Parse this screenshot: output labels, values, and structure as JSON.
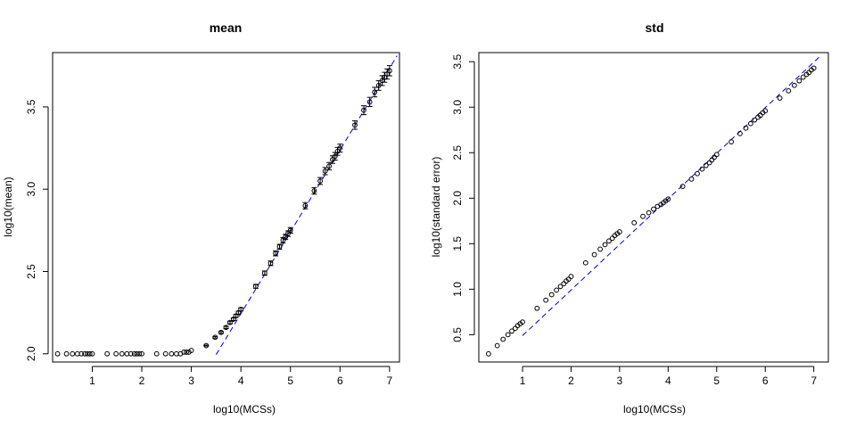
{
  "chart_data": [
    {
      "type": "scatter",
      "title": "mean",
      "xlabel": "log10(MCSs)",
      "ylabel": "log10(mean)",
      "xlim": [
        0.2,
        7.2
      ],
      "ylim": [
        1.95,
        3.83
      ],
      "xticks": [
        1,
        2,
        3,
        4,
        5,
        6,
        7
      ],
      "yticks": [
        2.0,
        2.5,
        3.0,
        3.5
      ],
      "ytick_labels": [
        "2.0",
        "2.5",
        "3.0",
        "3.5"
      ],
      "fit_line": {
        "x": [
          3.5,
          7.15
        ],
        "y": [
          1.995,
          3.81
        ],
        "color": "#0000cc",
        "style": "dashed"
      },
      "series": [
        {
          "x": [
            0.3,
            0.48,
            0.6,
            0.7,
            0.78,
            0.85,
            0.9,
            0.95,
            1.0,
            1.3,
            1.48,
            1.6,
            1.7,
            1.78,
            1.85,
            1.9,
            1.95,
            2.0,
            2.3,
            2.48,
            2.6,
            2.7,
            2.78,
            2.85,
            2.9,
            2.95,
            3.0,
            3.3,
            3.48,
            3.6,
            3.7,
            3.78,
            3.85,
            3.9,
            3.95,
            4.0,
            4.3,
            4.48,
            4.6,
            4.7,
            4.78,
            4.85,
            4.9,
            4.95,
            5.0,
            5.3,
            5.48,
            5.6,
            5.7,
            5.78,
            5.85,
            5.9,
            5.95,
            6.0,
            6.3,
            6.48,
            6.6,
            6.7,
            6.78,
            6.85,
            6.9,
            6.95,
            7.0
          ],
          "y": [
            2.0,
            2.0,
            2.0,
            2.0,
            2.0,
            2.0,
            2.0,
            2.0,
            2.0,
            2.0,
            2.0,
            2.0,
            2.0,
            2.0,
            2.0,
            2.0,
            2.0,
            2.0,
            2.0,
            2.0,
            2.0,
            2.0,
            2.0,
            2.01,
            2.01,
            2.01,
            2.02,
            2.05,
            2.1,
            2.13,
            2.16,
            2.19,
            2.21,
            2.23,
            2.25,
            2.27,
            2.41,
            2.49,
            2.55,
            2.61,
            2.65,
            2.69,
            2.71,
            2.73,
            2.75,
            2.9,
            2.99,
            3.05,
            3.11,
            3.14,
            3.18,
            3.2,
            3.23,
            3.25,
            3.39,
            3.48,
            3.53,
            3.59,
            3.63,
            3.66,
            3.68,
            3.7,
            3.72
          ],
          "err": [
            0,
            0,
            0,
            0,
            0,
            0,
            0,
            0,
            0,
            0,
            0,
            0,
            0,
            0,
            0,
            0,
            0,
            0,
            0,
            0,
            0,
            0,
            0,
            0,
            0,
            0,
            0,
            0.003,
            0.005,
            0.006,
            0.007,
            0.008,
            0.008,
            0.009,
            0.009,
            0.01,
            0.012,
            0.013,
            0.014,
            0.015,
            0.015,
            0.016,
            0.016,
            0.017,
            0.017,
            0.019,
            0.02,
            0.021,
            0.022,
            0.022,
            0.023,
            0.023,
            0.024,
            0.024,
            0.026,
            0.027,
            0.028,
            0.029,
            0.029,
            0.03,
            0.03,
            0.031,
            0.031
          ]
        }
      ]
    },
    {
      "type": "scatter",
      "title": "std",
      "xlabel": "log10(MCSs)",
      "ylabel": "log10(standard error)",
      "xlim": [
        0.1,
        7.3
      ],
      "ylim": [
        0.2,
        3.6
      ],
      "xticks": [
        1,
        2,
        3,
        4,
        5,
        6,
        7
      ],
      "yticks": [
        0.5,
        1.0,
        1.5,
        2.0,
        2.5,
        3.0,
        3.5
      ],
      "ytick_labels": [
        "0.5",
        "1.0",
        "1.5",
        "2.0",
        "2.5",
        "3.0",
        "3.5"
      ],
      "fit_line": {
        "x": [
          1.0,
          7.15
        ],
        "y": [
          0.49,
          3.57
        ],
        "color": "#0000cc",
        "style": "dashed"
      },
      "series": [
        {
          "x": [
            0.3,
            0.48,
            0.6,
            0.7,
            0.78,
            0.85,
            0.9,
            0.95,
            1.0,
            1.3,
            1.48,
            1.6,
            1.7,
            1.78,
            1.85,
            1.9,
            1.95,
            2.0,
            2.3,
            2.48,
            2.6,
            2.7,
            2.78,
            2.85,
            2.9,
            2.95,
            3.0,
            3.3,
            3.48,
            3.6,
            3.7,
            3.78,
            3.85,
            3.9,
            3.95,
            4.0,
            4.3,
            4.48,
            4.6,
            4.7,
            4.78,
            4.85,
            4.9,
            4.95,
            5.0,
            5.3,
            5.48,
            5.6,
            5.7,
            5.78,
            5.85,
            5.9,
            5.95,
            6.0,
            6.3,
            6.48,
            6.6,
            6.7,
            6.78,
            6.85,
            6.9,
            6.95,
            7.0
          ],
          "y": [
            0.29,
            0.38,
            0.45,
            0.5,
            0.54,
            0.57,
            0.6,
            0.62,
            0.64,
            0.79,
            0.88,
            0.94,
            0.99,
            1.03,
            1.06,
            1.09,
            1.11,
            1.14,
            1.29,
            1.38,
            1.44,
            1.49,
            1.53,
            1.56,
            1.59,
            1.61,
            1.63,
            1.73,
            1.8,
            1.84,
            1.88,
            1.91,
            1.93,
            1.95,
            1.97,
            1.99,
            2.13,
            2.21,
            2.27,
            2.32,
            2.36,
            2.39,
            2.42,
            2.45,
            2.48,
            2.62,
            2.71,
            2.77,
            2.82,
            2.86,
            2.89,
            2.91,
            2.94,
            2.96,
            3.1,
            3.18,
            3.24,
            3.29,
            3.33,
            3.36,
            3.38,
            3.41,
            3.43
          ]
        }
      ]
    }
  ]
}
